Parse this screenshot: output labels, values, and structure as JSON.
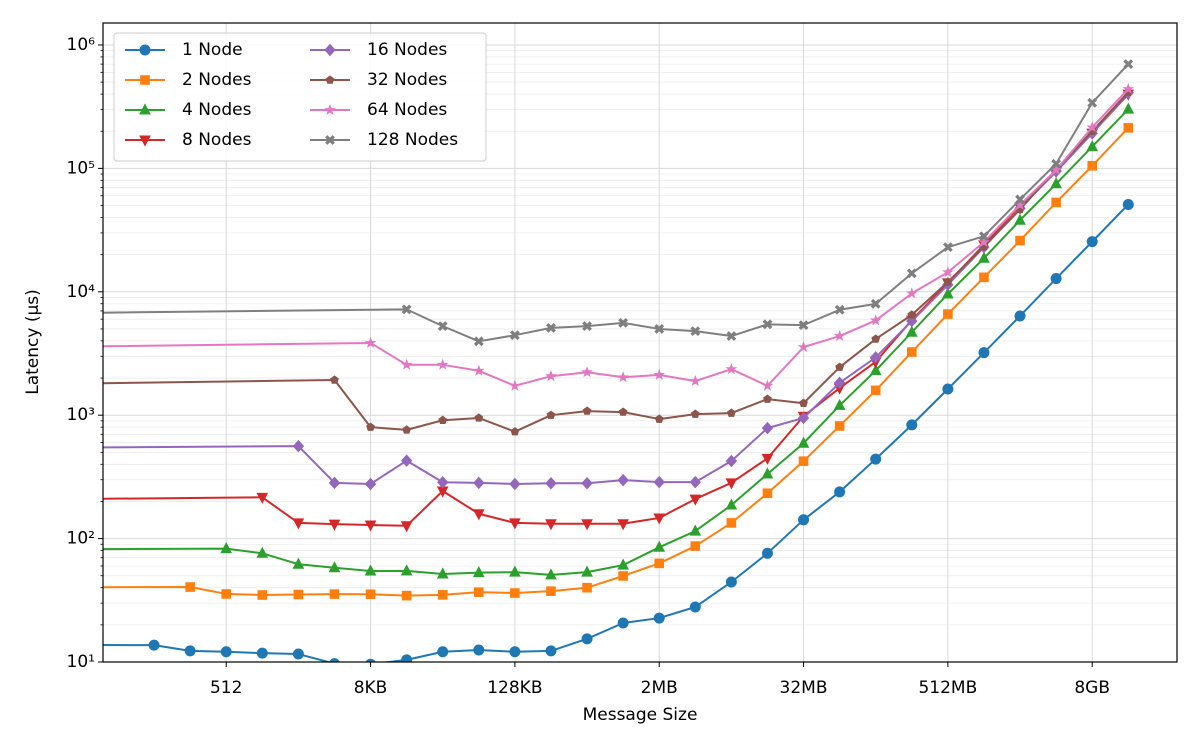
{
  "chart_data": {
    "type": "line",
    "xlabel": "Message Size",
    "ylabel": "Latency (µs)",
    "xscale": "log2",
    "yscale": "log",
    "grid": true,
    "minor_grid": true,
    "legend": {
      "loc": "upper left",
      "ncol": 2
    },
    "xlim": [
      48,
      43800000000
    ],
    "ylim": [
      10,
      1507000
    ],
    "xticks": [
      512,
      {
        "value": 8192,
        "label": "8KB"
      },
      {
        "value": 131072,
        "label": "128KB"
      },
      {
        "value": 2097152,
        "label": "2MB"
      },
      {
        "value": 33554432,
        "label": "32MB"
      },
      {
        "value": 536870912,
        "label": "512MB"
      },
      {
        "value": 8589934592,
        "label": "8GB"
      }
    ],
    "yticks": [
      {
        "value": 10,
        "label": "10¹"
      },
      {
        "value": 100,
        "label": "10²"
      },
      {
        "value": 1000,
        "label": "10³"
      },
      {
        "value": 10000,
        "label": "10⁴"
      },
      {
        "value": 100000,
        "label": "10⁵"
      },
      {
        "value": 1000000,
        "label": "10⁶"
      }
    ],
    "series": [
      {
        "name": "1 Node",
        "color": "#1f77b4",
        "marker": "circle",
        "x": [
          1,
          128,
          256,
          512,
          1024,
          2048,
          4096,
          8192,
          16384,
          32768,
          65536,
          131072,
          262144,
          524288,
          1048576,
          2097152,
          4194304,
          8388608,
          16777216,
          33554432,
          67108864,
          134217728,
          268435456,
          536870912,
          1073741824,
          2147483648,
          4294967296,
          8589934592,
          17179869184
        ],
        "values": [
          13.8,
          13.7,
          12.3,
          12.1,
          11.8,
          11.6,
          9.7,
          9.6,
          10.4,
          12.1,
          12.5,
          12.1,
          12.3,
          15.4,
          20.7,
          22.7,
          27.9,
          44.5,
          76,
          142,
          239,
          441,
          835,
          1630,
          3210,
          6370,
          12800,
          25500,
          51000
        ]
      },
      {
        "name": "2 Nodes",
        "color": "#ff7f0e",
        "marker": "square",
        "x": [
          1,
          256,
          512,
          1024,
          2048,
          4096,
          8192,
          16384,
          32768,
          65536,
          131072,
          262144,
          524288,
          1048576,
          2097152,
          4194304,
          8388608,
          16777216,
          33554432,
          67108864,
          134217728,
          268435456,
          536870912,
          1073741824,
          2147483648,
          4294967296,
          8589934592,
          17179869184
        ],
        "values": [
          40,
          40.5,
          35.6,
          34.9,
          35.2,
          35.5,
          35.4,
          34.5,
          35,
          36.8,
          36.2,
          37.5,
          40,
          49.8,
          63,
          87,
          134,
          233,
          424,
          818,
          1590,
          3250,
          6600,
          13100,
          26000,
          53000,
          105000,
          213000
        ]
      },
      {
        "name": "4 Nodes",
        "color": "#2ca02c",
        "marker": "triangle-up",
        "x": [
          1,
          512,
          1024,
          2048,
          4096,
          8192,
          16384,
          32768,
          65536,
          131072,
          262144,
          524288,
          1048576,
          2097152,
          4194304,
          8388608,
          16777216,
          33554432,
          67108864,
          134217728,
          268435456,
          536870912,
          1073741824,
          2147483648,
          4294967296,
          8589934592,
          17179869184
        ],
        "values": [
          81,
          83,
          76,
          62,
          58,
          54.6,
          54.8,
          51.7,
          53,
          53.5,
          50.8,
          53.5,
          61,
          85,
          115,
          187,
          334,
          593,
          1200,
          2300,
          4700,
          9600,
          18700,
          38000,
          75000,
          150000,
          302000
        ]
      },
      {
        "name": "8 Nodes",
        "color": "#d62728",
        "marker": "triangle-down",
        "x": [
          1,
          1024,
          2048,
          4096,
          8192,
          16384,
          32768,
          65536,
          131072,
          262144,
          524288,
          1048576,
          2097152,
          4194304,
          8388608,
          16777216,
          33554432,
          67108864,
          134217728,
          268435456,
          536870912,
          1073741824,
          2147483648,
          4294967296,
          8589934592,
          17179869184
        ],
        "values": [
          203,
          216,
          134,
          131,
          129,
          127,
          243,
          159,
          134,
          132,
          132,
          132,
          147,
          209,
          283,
          447,
          980,
          1660,
          2710,
          5900,
          11800,
          24000,
          48500,
          94000,
          193000,
          400000
        ]
      },
      {
        "name": "16 Nodes",
        "color": "#9467bd",
        "marker": "diamond",
        "x": [
          1,
          2048,
          4096,
          8192,
          16384,
          32768,
          65536,
          131072,
          262144,
          524288,
          1048576,
          2097152,
          4194304,
          8388608,
          16777216,
          33554432,
          67108864,
          134217728,
          268435456,
          536870912,
          1073741824,
          2147483648,
          4294967296,
          8589934592,
          17179869184
        ],
        "values": [
          535,
          562,
          283,
          277,
          428,
          286,
          283,
          277,
          281,
          281,
          298,
          287,
          287,
          425,
          786,
          950,
          1830,
          2940,
          5800,
          11400,
          23000,
          47500,
          95000,
          192000,
          410000
        ]
      },
      {
        "name": "32 Nodes",
        "color": "#8c564b",
        "marker": "pentagon",
        "x": [
          1,
          4096,
          8192,
          16384,
          32768,
          65536,
          131072,
          262144,
          524288,
          1048576,
          2097152,
          4194304,
          8388608,
          16777216,
          33554432,
          67108864,
          134217728,
          268435456,
          536870912,
          1073741824,
          2147483648,
          4294967296,
          8589934592,
          17179869184
        ],
        "values": [
          1720,
          1930,
          800,
          760,
          910,
          950,
          735,
          1000,
          1080,
          1060,
          930,
          1020,
          1040,
          1350,
          1250,
          2450,
          4140,
          6500,
          12000,
          23300,
          46500,
          98000,
          200000,
          415000
        ]
      },
      {
        "name": "64 Nodes",
        "color": "#e377c2",
        "marker": "star",
        "x": [
          1,
          8192,
          16384,
          32768,
          65536,
          131072,
          262144,
          524288,
          1048576,
          2097152,
          4194304,
          8388608,
          16777216,
          33554432,
          67108864,
          134217728,
          268435456,
          536870912,
          1073741824,
          2147483648,
          4294967296,
          8589934592,
          17179869184
        ],
        "values": [
          3450,
          3850,
          2560,
          2560,
          2290,
          1730,
          2070,
          2230,
          2030,
          2120,
          1890,
          2360,
          1730,
          3560,
          4380,
          5860,
          9700,
          14400,
          25300,
          50500,
          97000,
          215000,
          440000
        ]
      },
      {
        "name": "128 Nodes",
        "color": "#7f7f7f",
        "marker": "x",
        "x": [
          1,
          16384,
          32768,
          65536,
          131072,
          262144,
          524288,
          1048576,
          2097152,
          4194304,
          8388608,
          16777216,
          33554432,
          67108864,
          134217728,
          268435456,
          536870912,
          1073741824,
          2147483648,
          4294967296,
          8589934592,
          17179869184
        ],
        "values": [
          6500,
          7200,
          5270,
          3970,
          4450,
          5100,
          5270,
          5600,
          5000,
          4800,
          4380,
          5450,
          5370,
          7150,
          7980,
          14100,
          23000,
          28200,
          56000,
          109000,
          340000,
          700000
        ]
      }
    ]
  }
}
